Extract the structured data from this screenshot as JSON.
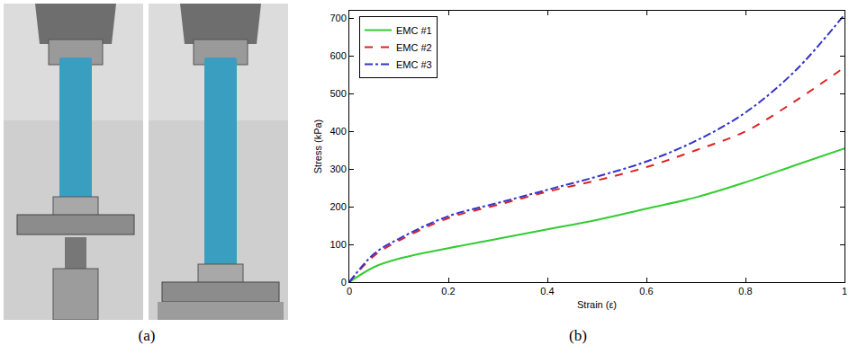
{
  "panel_labels": [
    "(a)",
    "(b)"
  ],
  "chart_data": {
    "type": "line",
    "x_label": "Strain (ε)",
    "y_label": "Stress (kPa)",
    "x": [
      0,
      0.05,
      0.1,
      0.2,
      0.3,
      0.4,
      0.5,
      0.6,
      0.7,
      0.8,
      0.9,
      1.0
    ],
    "series": [
      {
        "name": "EMC #1",
        "color": "#33cc33",
        "line_style": "solid",
        "values": [
          0,
          40,
          62,
          90,
          115,
          140,
          165,
          195,
          225,
          265,
          310,
          355
        ]
      },
      {
        "name": "EMC #2",
        "color": "#dd2222",
        "line_style": "dashed",
        "values": [
          0,
          70,
          110,
          170,
          205,
          240,
          270,
          305,
          350,
          400,
          480,
          570
        ]
      },
      {
        "name": "EMC #3",
        "color": "#3333cc",
        "line_style": "dashdot",
        "values": [
          0,
          75,
          115,
          175,
          210,
          245,
          280,
          320,
          375,
          450,
          560,
          710
        ]
      }
    ],
    "xlim": [
      0,
      1
    ],
    "xticks": [
      0,
      0.2,
      0.4,
      0.6,
      0.8,
      1
    ],
    "ylim": [
      0,
      720
    ],
    "yticks": [
      0,
      100,
      200,
      300,
      400,
      500,
      600,
      700
    ],
    "grid": false,
    "legend": "upper left"
  }
}
